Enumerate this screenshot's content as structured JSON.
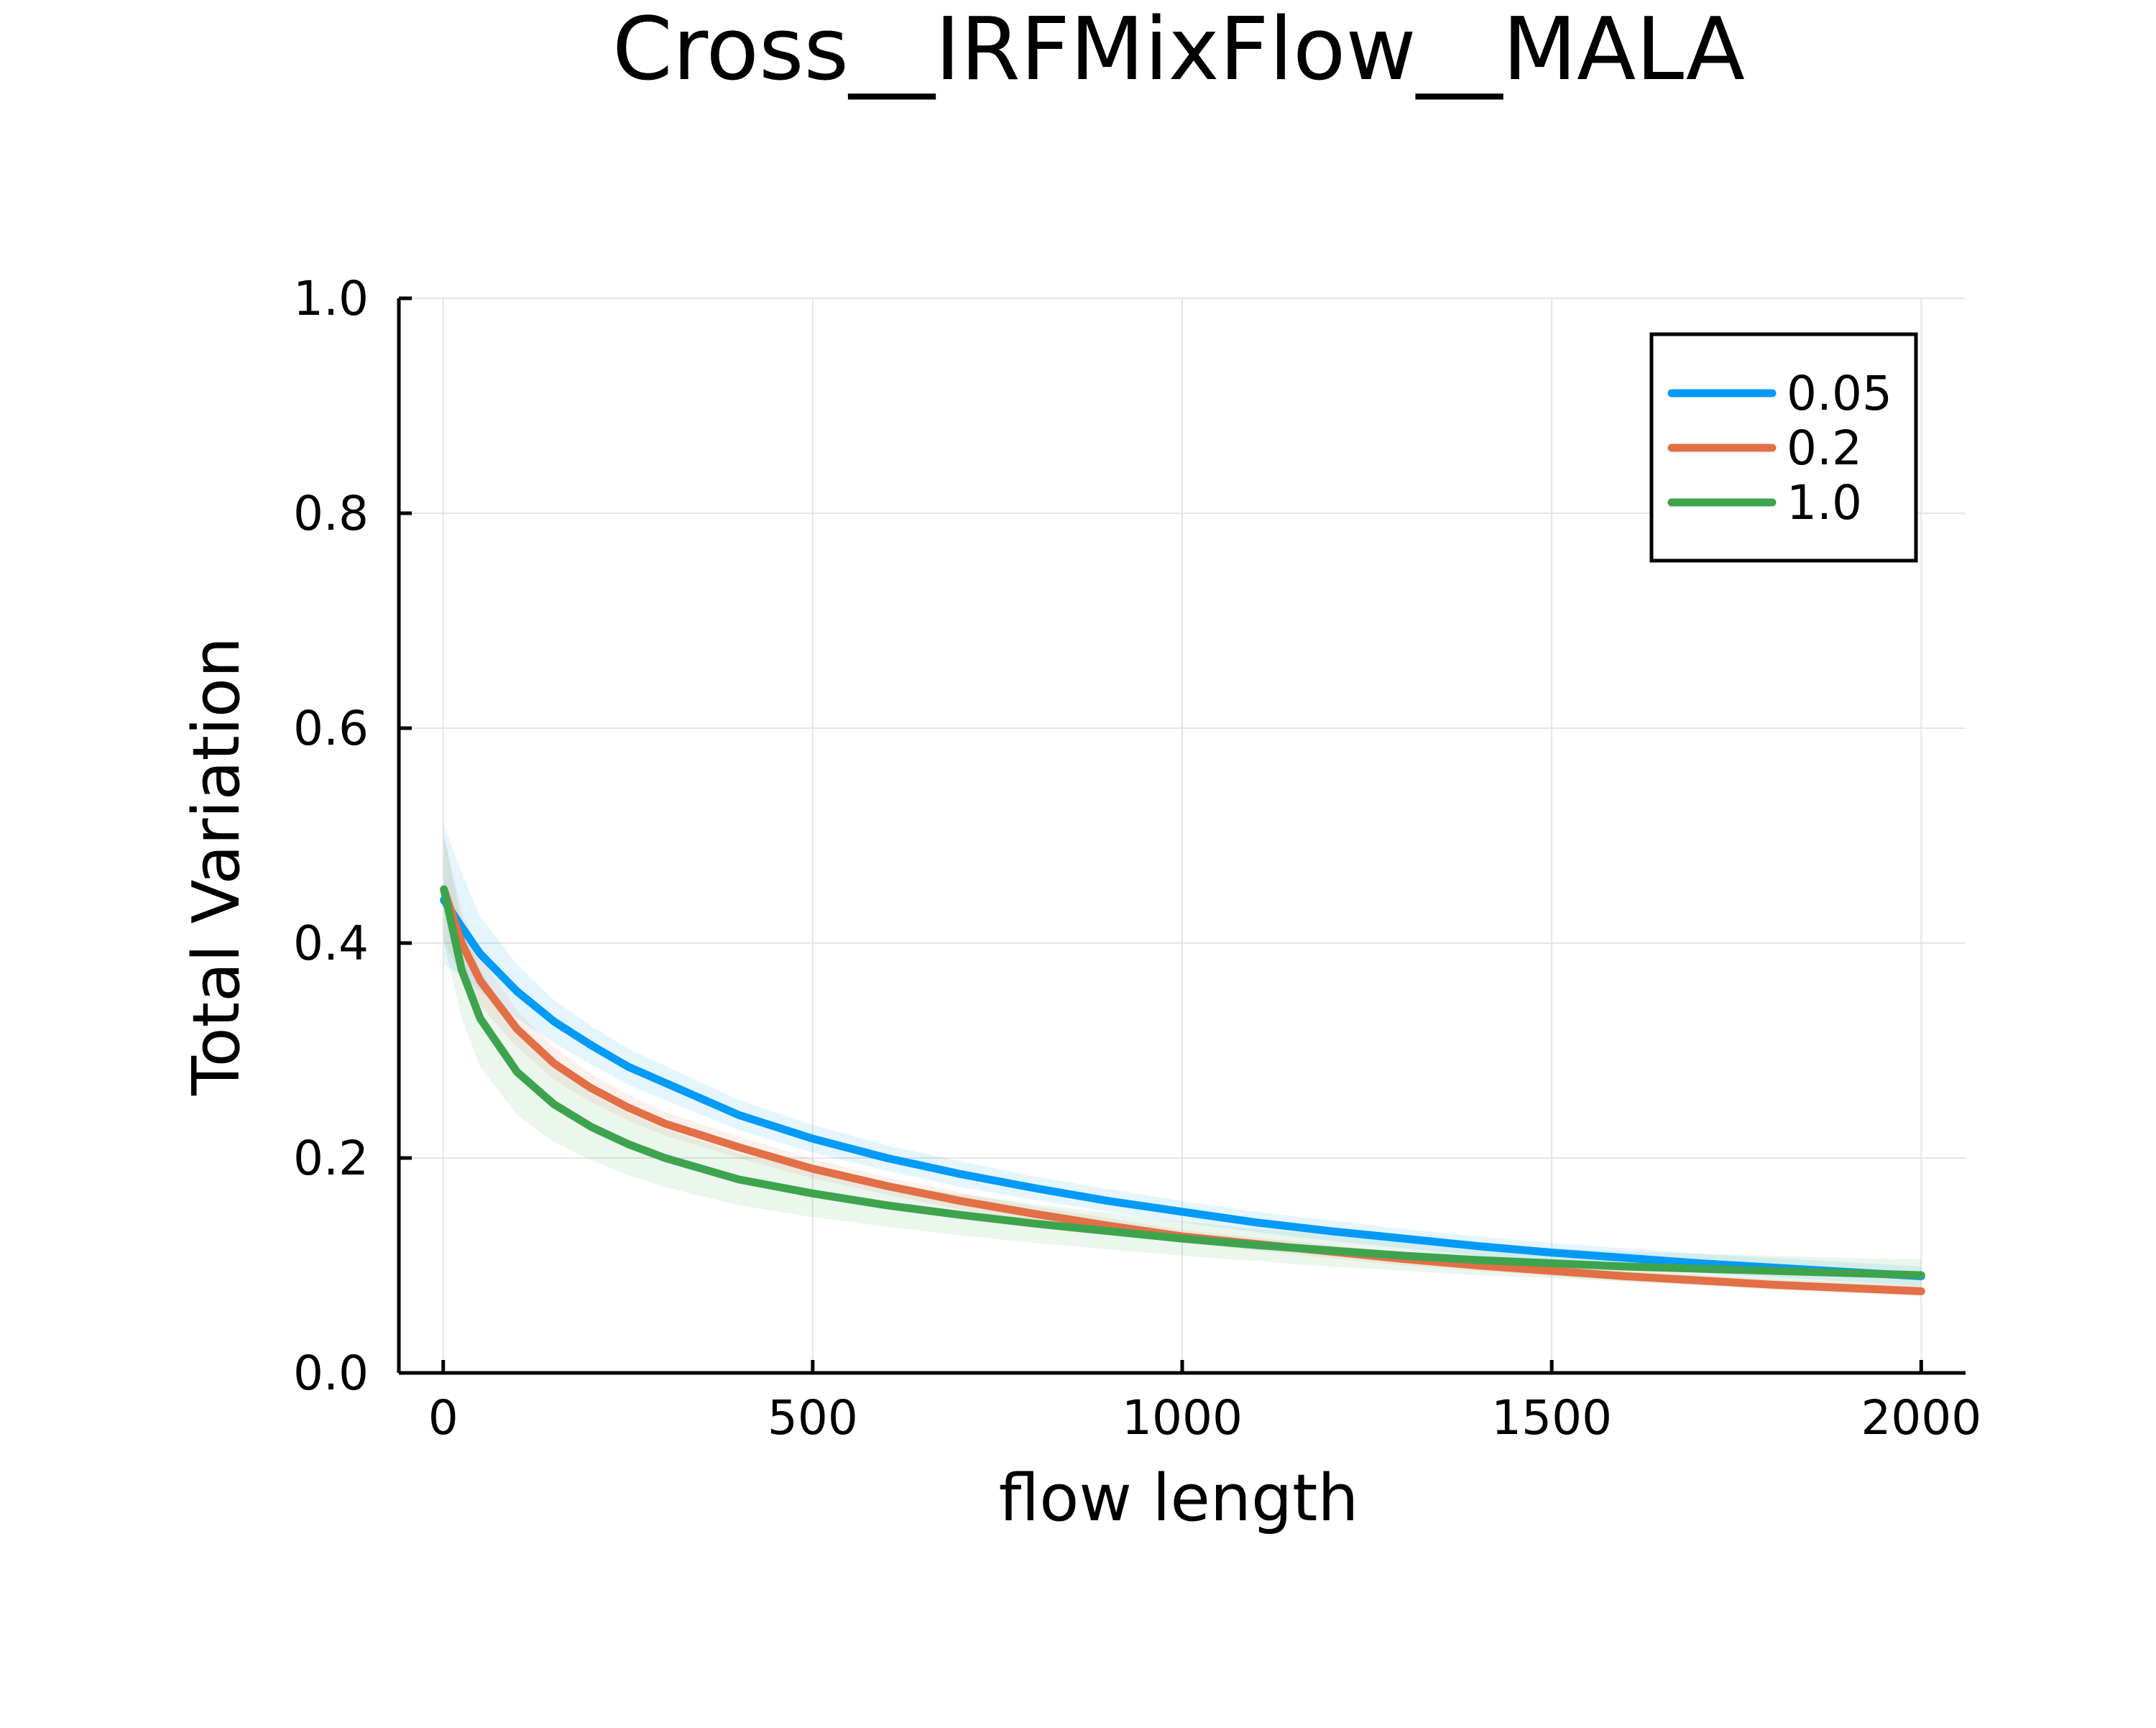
{
  "chart_data": {
    "type": "line",
    "title": "Cross__IRFMixFlow__MALA",
    "xlabel": "flow length",
    "ylabel": "Total Variation",
    "xlim": [
      -60,
      2060
    ],
    "ylim": [
      0,
      1.0
    ],
    "xticks": [
      0,
      500,
      1000,
      1500,
      2000
    ],
    "xtick_labels": [
      "0",
      "500",
      "1000",
      "1500",
      "2000"
    ],
    "yticks": [
      0.0,
      0.2,
      0.4,
      0.6,
      0.8,
      1.0
    ],
    "ytick_labels": [
      "0.0",
      "0.2",
      "0.4",
      "0.6",
      "0.8",
      "1.0"
    ],
    "grid": true,
    "legend_position": "top-right",
    "x": [
      1,
      25,
      50,
      100,
      150,
      200,
      250,
      300,
      400,
      500,
      600,
      700,
      800,
      900,
      1000,
      1100,
      1200,
      1300,
      1400,
      1500,
      1600,
      1700,
      1800,
      1900,
      2000
    ],
    "series": [
      {
        "name": "0.05",
        "color": "#009af9",
        "values": [
          0.44,
          0.415,
          0.39,
          0.355,
          0.327,
          0.305,
          0.285,
          0.27,
          0.24,
          0.218,
          0.2,
          0.185,
          0.172,
          0.16,
          0.15,
          0.14,
          0.132,
          0.125,
          0.118,
          0.112,
          0.107,
          0.102,
          0.098,
          0.094,
          0.09
        ],
        "lower": [
          0.38,
          0.37,
          0.355,
          0.33,
          0.307,
          0.287,
          0.268,
          0.254,
          0.226,
          0.205,
          0.188,
          0.173,
          0.161,
          0.15,
          0.14,
          0.131,
          0.123,
          0.116,
          0.109,
          0.103,
          0.098,
          0.093,
          0.089,
          0.085,
          0.081
        ],
        "upper": [
          0.51,
          0.465,
          0.425,
          0.38,
          0.347,
          0.323,
          0.302,
          0.286,
          0.254,
          0.231,
          0.212,
          0.197,
          0.183,
          0.171,
          0.16,
          0.15,
          0.142,
          0.134,
          0.127,
          0.121,
          0.116,
          0.111,
          0.107,
          0.103,
          0.099
        ]
      },
      {
        "name": "0.2",
        "color": "#e26f46",
        "values": [
          0.45,
          0.4,
          0.365,
          0.32,
          0.288,
          0.265,
          0.247,
          0.232,
          0.21,
          0.19,
          0.174,
          0.16,
          0.148,
          0.137,
          0.127,
          0.12,
          0.113,
          0.106,
          0.1,
          0.095,
          0.09,
          0.086,
          0.082,
          0.079,
          0.076
        ],
        "lower": [
          0.4,
          0.37,
          0.342,
          0.303,
          0.273,
          0.252,
          0.235,
          0.221,
          0.2,
          0.181,
          0.166,
          0.152,
          0.141,
          0.13,
          0.121,
          0.114,
          0.107,
          0.1,
          0.095,
          0.09,
          0.085,
          0.081,
          0.077,
          0.074,
          0.071
        ],
        "upper": [
          0.5,
          0.43,
          0.388,
          0.337,
          0.303,
          0.278,
          0.259,
          0.243,
          0.22,
          0.199,
          0.182,
          0.168,
          0.155,
          0.144,
          0.133,
          0.126,
          0.119,
          0.112,
          0.105,
          0.1,
          0.095,
          0.091,
          0.087,
          0.084,
          0.081
        ]
      },
      {
        "name": "1.0",
        "color": "#3da44d",
        "values": [
          0.45,
          0.375,
          0.33,
          0.28,
          0.25,
          0.229,
          0.213,
          0.2,
          0.18,
          0.167,
          0.156,
          0.147,
          0.139,
          0.132,
          0.125,
          0.119,
          0.114,
          0.109,
          0.105,
          0.102,
          0.099,
          0.097,
          0.095,
          0.093,
          0.091
        ],
        "lower": [
          0.4,
          0.33,
          0.285,
          0.24,
          0.215,
          0.198,
          0.184,
          0.173,
          0.156,
          0.145,
          0.136,
          0.128,
          0.121,
          0.115,
          0.109,
          0.104,
          0.099,
          0.095,
          0.091,
          0.088,
          0.085,
          0.082,
          0.08,
          0.078,
          0.076
        ],
        "upper": [
          0.5,
          0.42,
          0.375,
          0.32,
          0.285,
          0.26,
          0.242,
          0.227,
          0.204,
          0.189,
          0.176,
          0.166,
          0.157,
          0.149,
          0.141,
          0.134,
          0.129,
          0.123,
          0.119,
          0.116,
          0.113,
          0.111,
          0.109,
          0.107,
          0.106
        ]
      }
    ]
  }
}
